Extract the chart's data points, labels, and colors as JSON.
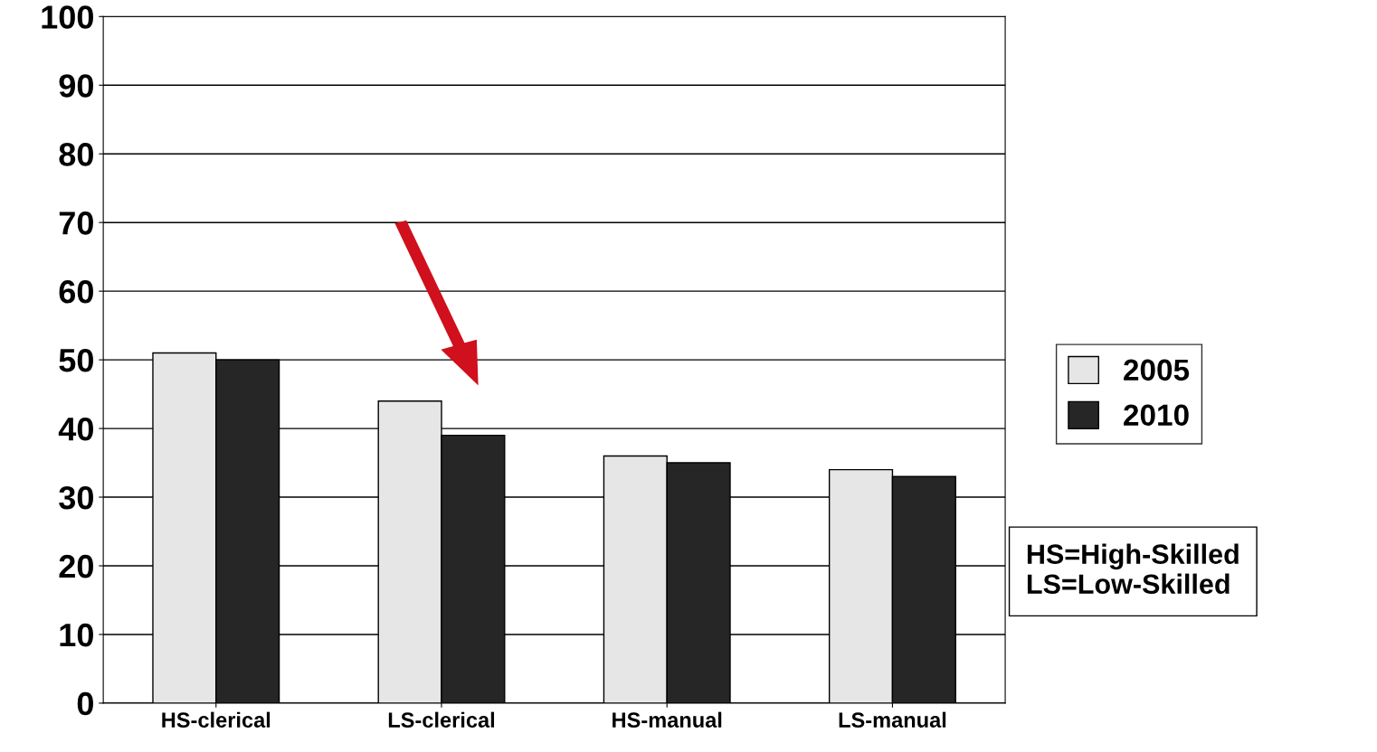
{
  "chart_data": {
    "type": "bar",
    "categories": [
      "HS-clerical",
      "LS-clerical",
      "HS-manual",
      "LS-manual"
    ],
    "series": [
      {
        "name": "2005",
        "color": "#e6e6e6",
        "values": [
          51,
          44,
          36,
          34
        ]
      },
      {
        "name": "2010",
        "color": "#262626",
        "values": [
          50,
          39,
          35,
          33
        ]
      }
    ],
    "ylim": [
      0,
      100
    ],
    "yticks": [
      0,
      10,
      20,
      30,
      40,
      50,
      60,
      70,
      80,
      90,
      100
    ],
    "grid": "y",
    "legend": "right",
    "annotations": [
      "HS=High-Skilled\nLS=Low-Skilled"
    ]
  }
}
